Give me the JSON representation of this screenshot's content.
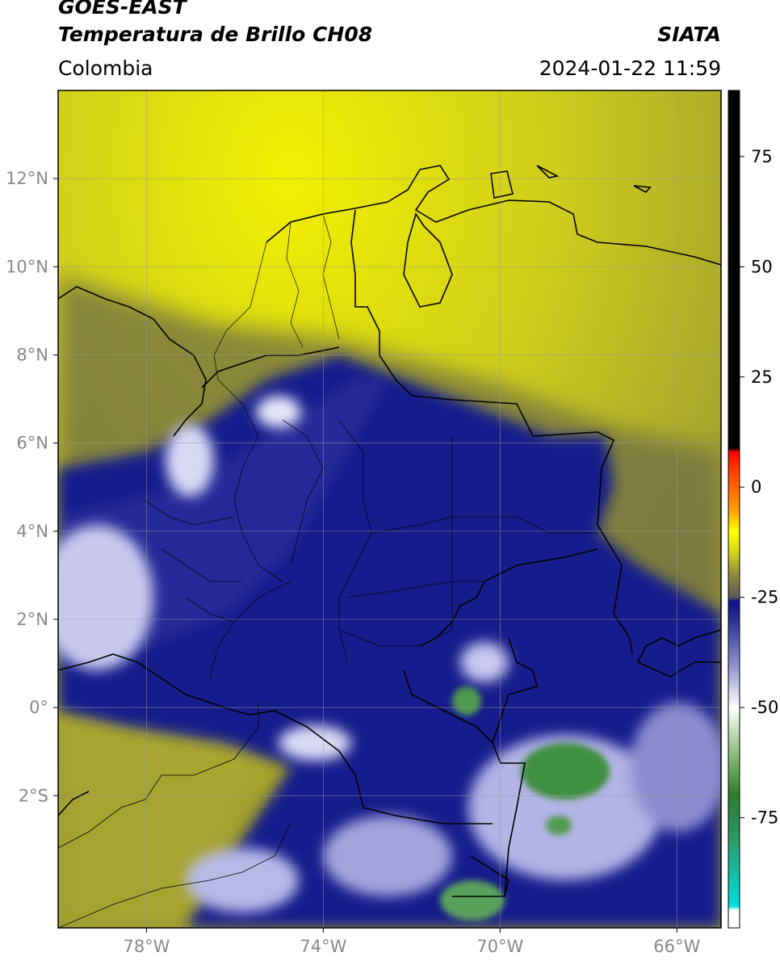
{
  "header": {
    "title_line1": "GOES-EAST",
    "title_line2": "Temperatura de Brillo CH08",
    "subtitle": "Colombia",
    "brand": "SIATA",
    "datetime": "2024-01-22 11:59"
  },
  "map": {
    "region": "Colombia",
    "lon_range": [
      -80,
      -65
    ],
    "lat_range": [
      -5,
      14
    ],
    "lon_ticks": [
      {
        "value": -78,
        "label": "78°W"
      },
      {
        "value": -74,
        "label": "74°W"
      },
      {
        "value": -70,
        "label": "70°W"
      },
      {
        "value": -66,
        "label": "66°W"
      }
    ],
    "lat_ticks": [
      {
        "value": 12,
        "label": "12°N"
      },
      {
        "value": 10,
        "label": "10°N"
      },
      {
        "value": 8,
        "label": "8°N"
      },
      {
        "value": 6,
        "label": "6°N"
      },
      {
        "value": 4,
        "label": "4°N"
      },
      {
        "value": 2,
        "label": "2°N"
      },
      {
        "value": 0,
        "label": "0°"
      },
      {
        "value": -2,
        "label": "2°S"
      }
    ],
    "grid": true
  },
  "colorbar": {
    "range": [
      -100,
      90
    ],
    "ticks": [
      {
        "value": 75,
        "label": "75"
      },
      {
        "value": 50,
        "label": "50"
      },
      {
        "value": 25,
        "label": "25"
      },
      {
        "value": 0,
        "label": "0"
      },
      {
        "value": -25,
        "label": "-25"
      },
      {
        "value": -50,
        "label": "-50"
      },
      {
        "value": -75,
        "label": "-75"
      }
    ],
    "stops": [
      {
        "value": -100,
        "color": "#ffffff"
      },
      {
        "value": -96,
        "color": "#ffffff"
      },
      {
        "value": -95,
        "color": "#00e0e0"
      },
      {
        "value": -80,
        "color": "#2a9a6a"
      },
      {
        "value": -70,
        "color": "#2e7d2e"
      },
      {
        "value": -60,
        "color": "#8fbf80"
      },
      {
        "value": -50,
        "color": "#ffffff"
      },
      {
        "value": -40,
        "color": "#8a8cc8"
      },
      {
        "value": -30,
        "color": "#2a2f95"
      },
      {
        "value": -26,
        "color": "#10108a"
      },
      {
        "value": -25,
        "color": "#5a5a5a"
      },
      {
        "value": -20,
        "color": "#8a8a3a"
      },
      {
        "value": -15,
        "color": "#d2d21a"
      },
      {
        "value": -10,
        "color": "#ffff00"
      },
      {
        "value": -5,
        "color": "#ff9a00"
      },
      {
        "value": 5,
        "color": "#ff3000"
      },
      {
        "value": 8,
        "color": "#ff0000"
      },
      {
        "value": 9,
        "color": "#000000"
      },
      {
        "value": 90,
        "color": "#000000"
      }
    ]
  }
}
